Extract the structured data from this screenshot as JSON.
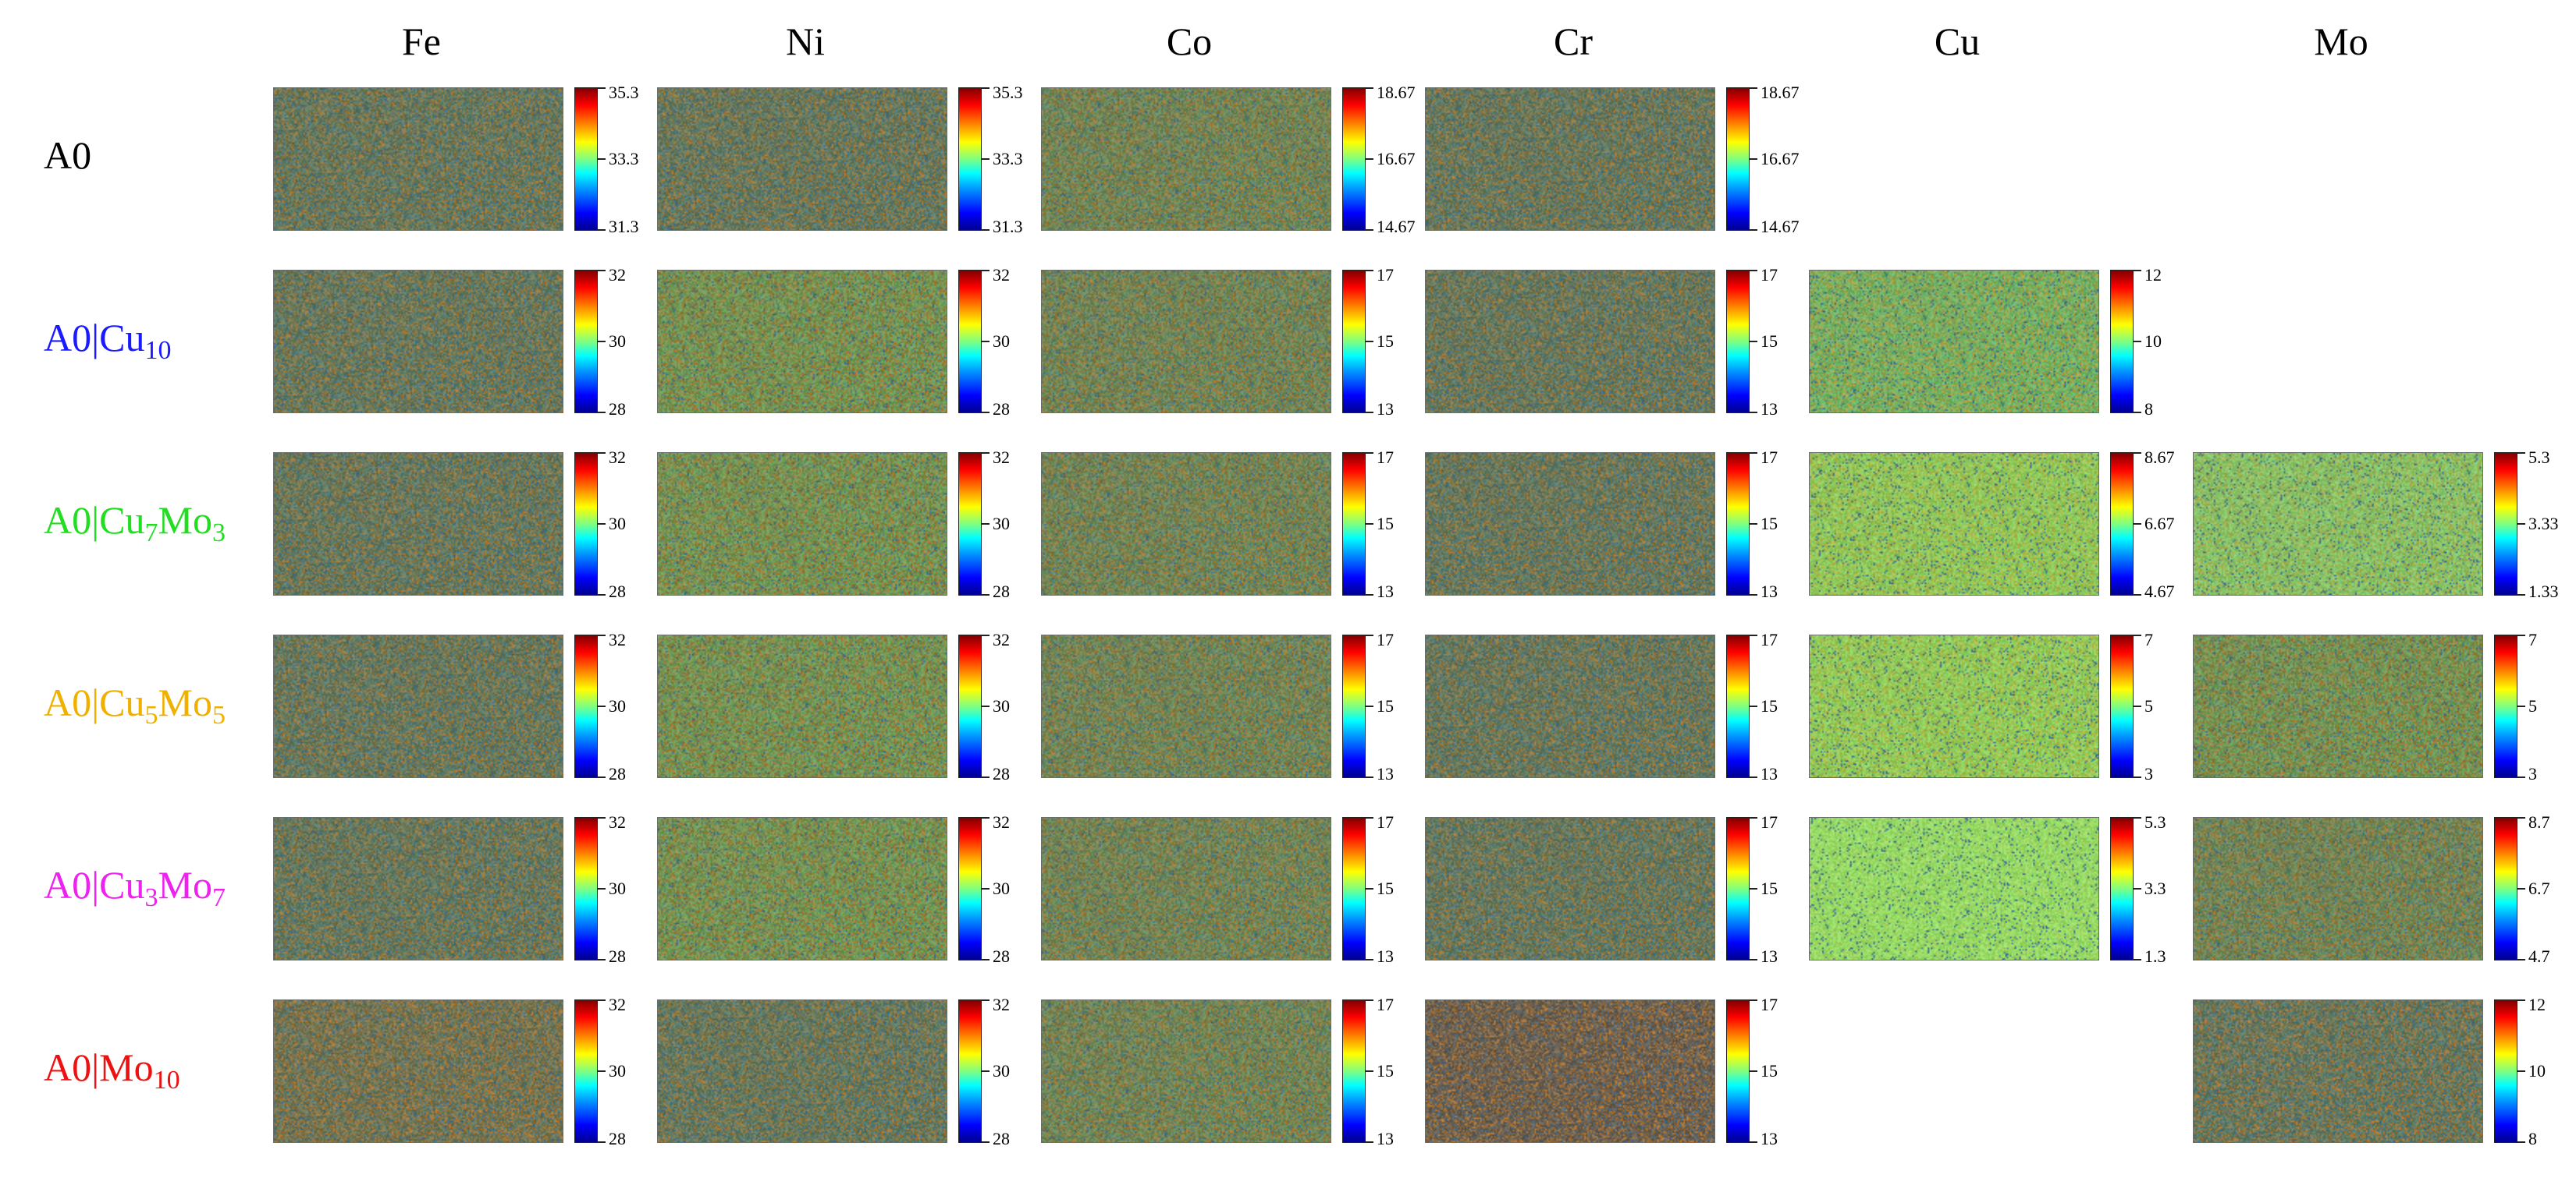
{
  "figure": {
    "columns": [
      "Fe",
      "Ni",
      "Co",
      "Cr",
      "Cu",
      "Mo"
    ],
    "rows": [
      {
        "label_base": "A0",
        "label_parts": [],
        "label_color": "#000000",
        "panels": [
          {
            "element": "Fe",
            "ticks": [
              "35.3",
              "33.3",
              "31.3"
            ],
            "base_color": "#5e7a63",
            "warm_color": "#a5742f"
          },
          {
            "element": "Ni",
            "ticks": [
              "35.3",
              "33.3",
              "31.3"
            ],
            "base_color": "#5e7a63",
            "warm_color": "#a5742f"
          },
          {
            "element": "Co",
            "ticks": [
              "18.67",
              "16.67",
              "14.67"
            ],
            "base_color": "#6a8a5c",
            "warm_color": "#a5742f"
          },
          {
            "element": "Cr",
            "ticks": [
              "18.67",
              "16.67",
              "14.67"
            ],
            "base_color": "#5e7a63",
            "warm_color": "#a5742f"
          }
        ]
      },
      {
        "label_base": "A0|",
        "label_parts": [
          {
            "sym": "Cu",
            "sub": "10"
          }
        ],
        "label_color": "#1a1aff",
        "panels": [
          {
            "element": "Fe",
            "ticks": [
              "32",
              "30",
              "28"
            ],
            "base_color": "#5e7a63",
            "warm_color": "#a5742f"
          },
          {
            "element": "Ni",
            "ticks": [
              "32",
              "30",
              "28"
            ],
            "base_color": "#6f9a58",
            "warm_color": "#a5742f"
          },
          {
            "element": "Co",
            "ticks": [
              "17",
              "15",
              "13"
            ],
            "base_color": "#6a8a5c",
            "warm_color": "#a5742f"
          },
          {
            "element": "Cr",
            "ticks": [
              "17",
              "15",
              "13"
            ],
            "base_color": "#5e7a63",
            "warm_color": "#a5742f"
          },
          {
            "element": "Cu",
            "ticks": [
              "12",
              "10",
              "8"
            ],
            "base_color": "#6fb466",
            "warm_color": "#b49a3a"
          }
        ]
      },
      {
        "label_base": "A0|",
        "label_parts": [
          {
            "sym": "Cu",
            "sub": "7"
          },
          {
            "sym": "Mo",
            "sub": "3"
          }
        ],
        "label_color": "#22dd22",
        "panels": [
          {
            "element": "Fe",
            "ticks": [
              "32",
              "30",
              "28"
            ],
            "base_color": "#5e7a63",
            "warm_color": "#a5742f"
          },
          {
            "element": "Ni",
            "ticks": [
              "32",
              "30",
              "28"
            ],
            "base_color": "#6f9a58",
            "warm_color": "#a5742f"
          },
          {
            "element": "Co",
            "ticks": [
              "17",
              "15",
              "13"
            ],
            "base_color": "#6a8a5c",
            "warm_color": "#a5742f"
          },
          {
            "element": "Cr",
            "ticks": [
              "17",
              "15",
              "13"
            ],
            "base_color": "#5e7a63",
            "warm_color": "#a5742f"
          },
          {
            "element": "Cu",
            "ticks": [
              "8.67",
              "6.67",
              "4.67"
            ],
            "base_color": "#8ccc5e",
            "warm_color": "#b4b040"
          },
          {
            "element": "Mo",
            "ticks": [
              "5.3",
              "3.33",
              "1.33"
            ],
            "base_color": "#86c66a",
            "warm_color": "#a8a848"
          }
        ]
      },
      {
        "label_base": "A0|",
        "label_parts": [
          {
            "sym": "Cu",
            "sub": "5"
          },
          {
            "sym": "Mo",
            "sub": "5"
          }
        ],
        "label_color": "#f0b000",
        "panels": [
          {
            "element": "Fe",
            "ticks": [
              "32",
              "30",
              "28"
            ],
            "base_color": "#5e7a63",
            "warm_color": "#a5742f"
          },
          {
            "element": "Ni",
            "ticks": [
              "32",
              "30",
              "28"
            ],
            "base_color": "#6f9a58",
            "warm_color": "#a5742f"
          },
          {
            "element": "Co",
            "ticks": [
              "17",
              "15",
              "13"
            ],
            "base_color": "#6a8a5c",
            "warm_color": "#a5742f"
          },
          {
            "element": "Cr",
            "ticks": [
              "17",
              "15",
              "13"
            ],
            "base_color": "#5e7a63",
            "warm_color": "#a5742f"
          },
          {
            "element": "Cu",
            "ticks": [
              "7",
              "5",
              "3"
            ],
            "base_color": "#8ed05e",
            "warm_color": "#b4b040"
          },
          {
            "element": "Mo",
            "ticks": [
              "7",
              "5",
              "3"
            ],
            "base_color": "#6f9a58",
            "warm_color": "#a5742f"
          }
        ]
      },
      {
        "label_base": "A0|",
        "label_parts": [
          {
            "sym": "Cu",
            "sub": "3"
          },
          {
            "sym": "Mo",
            "sub": "7"
          }
        ],
        "label_color": "#ee22ee",
        "panels": [
          {
            "element": "Fe",
            "ticks": [
              "32",
              "30",
              "28"
            ],
            "base_color": "#5e7a63",
            "warm_color": "#a5742f"
          },
          {
            "element": "Ni",
            "ticks": [
              "32",
              "30",
              "28"
            ],
            "base_color": "#6f9a58",
            "warm_color": "#a5742f"
          },
          {
            "element": "Co",
            "ticks": [
              "17",
              "15",
              "13"
            ],
            "base_color": "#6a8a5c",
            "warm_color": "#a5742f"
          },
          {
            "element": "Cr",
            "ticks": [
              "17",
              "15",
              "13"
            ],
            "base_color": "#5e7a63",
            "warm_color": "#a5742f"
          },
          {
            "element": "Cu",
            "ticks": [
              "5.3",
              "3.3",
              "1.3"
            ],
            "base_color": "#94dc66",
            "warm_color": "#a8d060"
          },
          {
            "element": "Mo",
            "ticks": [
              "8.7",
              "6.7",
              "4.7"
            ],
            "base_color": "#6a8a5c",
            "warm_color": "#a5742f"
          }
        ]
      },
      {
        "label_base": "A0|",
        "label_parts": [
          {
            "sym": "Mo",
            "sub": "10"
          }
        ],
        "label_color": "#ee1111",
        "panels": [
          {
            "element": "Fe",
            "ticks": [
              "32",
              "30",
              "28"
            ],
            "base_color": "#6a7658",
            "warm_color": "#b0722c"
          },
          {
            "element": "Ni",
            "ticks": [
              "32",
              "30",
              "28"
            ],
            "base_color": "#5e7a63",
            "warm_color": "#a5742f"
          },
          {
            "element": "Co",
            "ticks": [
              "17",
              "15",
              "13"
            ],
            "base_color": "#6a8a5c",
            "warm_color": "#a5742f"
          },
          {
            "element": "Cr",
            "ticks": [
              "17",
              "15",
              "13"
            ],
            "base_color": "#665e52",
            "warm_color": "#b0722c"
          },
          {
            "element": "Mo",
            "ticks": [
              "12",
              "10",
              "8"
            ],
            "base_color": "#5e7a63",
            "warm_color": "#b0722c"
          }
        ]
      }
    ]
  }
}
